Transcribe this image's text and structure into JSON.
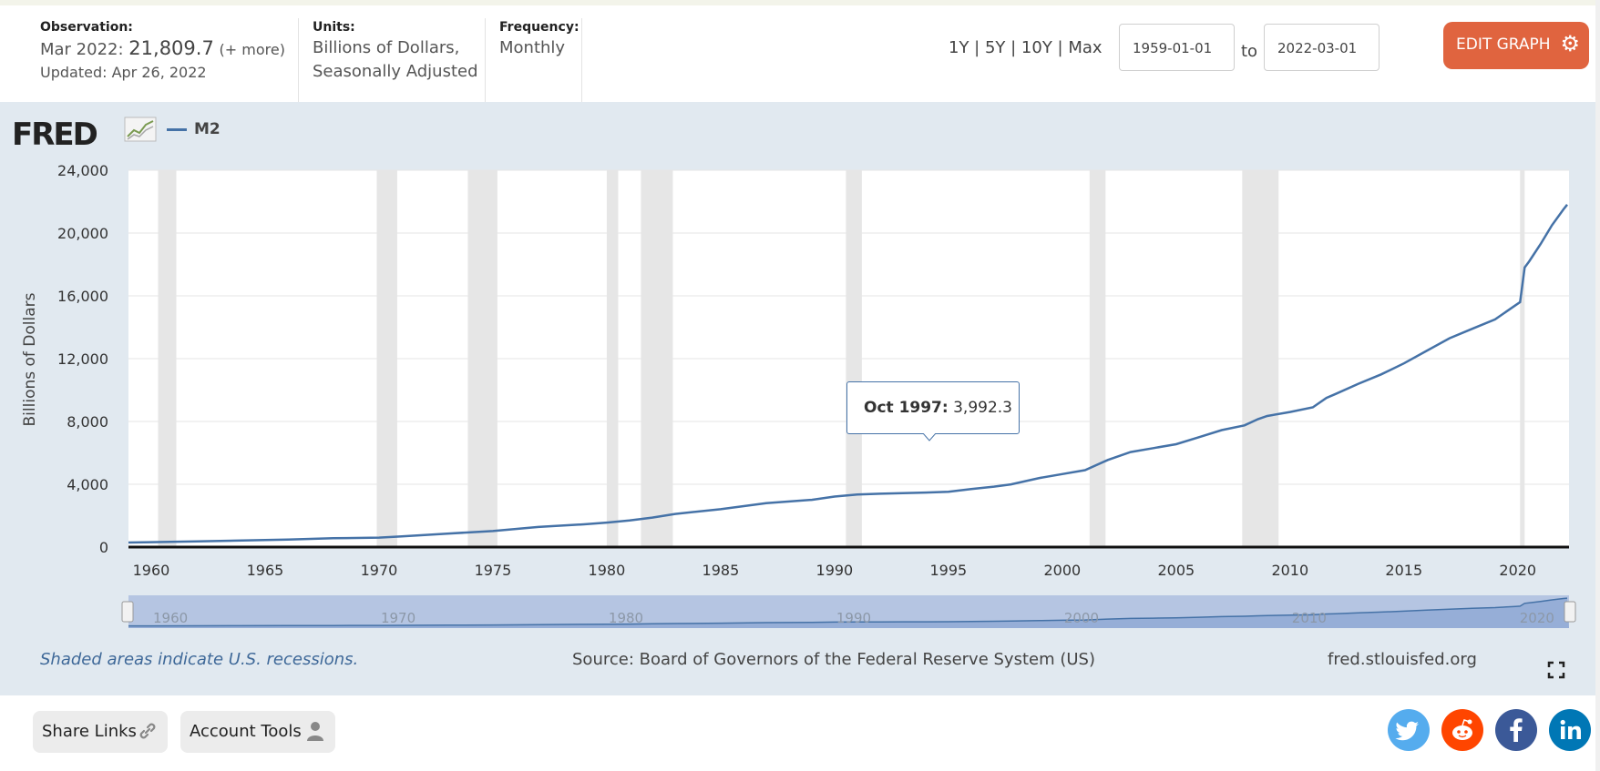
{
  "header": {
    "observation_label": "Observation:",
    "observation_date": "Mar 2022:",
    "observation_value": "21,809.7",
    "observation_more": "(+ more)",
    "updated": "Updated: Apr 26, 2022",
    "units_label": "Units:",
    "units_line1": "Billions of Dollars,",
    "units_line2": "Seasonally Adjusted",
    "frequency_label": "Frequency:",
    "frequency_value": "Monthly",
    "range_links": "1Y | 5Y | 10Y | Max",
    "start_date": "1959-01-01",
    "to_label": "to",
    "end_date": "2022-03-01",
    "edit_button": "EDIT GRAPH"
  },
  "graph": {
    "logo": "FRED",
    "recession_note": "Shaded areas indicate U.S. recessions.",
    "source": "Source: Board of Governors of the Federal Reserve System (US)",
    "site": "fred.stlouisfed.org",
    "tooltip_date": "Oct 1997:",
    "tooltip_value": "3,992.3"
  },
  "footer": {
    "share_links": "Share Links",
    "account_tools": "Account Tools"
  },
  "colors": {
    "series": "#4572a7",
    "recession": "#e6e6e6",
    "edit_button": "#e0643f",
    "twitter": "#55acee",
    "reddit": "#ff4500",
    "facebook": "#3b5998",
    "linkedin": "#0077b5"
  },
  "icons": [
    "fred-chart-icon",
    "gear-icon",
    "link-icon",
    "user-icon",
    "twitter-icon",
    "reddit-icon",
    "facebook-icon",
    "linkedin-icon",
    "expand-icon"
  ],
  "chart_data": {
    "type": "line",
    "title": "",
    "ylabel": "Billions of Dollars",
    "xlabel": "",
    "ylim": [
      0,
      24000
    ],
    "xlim": [
      1959.0,
      2022.25
    ],
    "y_ticks": [
      "0",
      "4,000",
      "8,000",
      "12,000",
      "16,000",
      "20,000",
      "24,000"
    ],
    "x_ticks": [
      "1960",
      "1965",
      "1970",
      "1975",
      "1980",
      "1985",
      "1990",
      "1995",
      "2000",
      "2005",
      "2010",
      "2015",
      "2020"
    ],
    "navigator_ticks": [
      "1960",
      "1970",
      "1980",
      "1990",
      "2000",
      "2010",
      "2020"
    ],
    "grid": true,
    "legend_position": "top-left",
    "recessions": [
      [
        1960.3,
        1961.1
      ],
      [
        1969.9,
        1970.8
      ],
      [
        1973.9,
        1975.2
      ],
      [
        1980.0,
        1980.5
      ],
      [
        1981.5,
        1982.9
      ],
      [
        1990.5,
        1991.2
      ],
      [
        2001.2,
        2001.9
      ],
      [
        2007.9,
        2009.5
      ],
      [
        2020.1,
        2020.3
      ]
    ],
    "series": [
      {
        "name": "M2",
        "x": [
          1959.0,
          1960.0,
          1962.0,
          1964.0,
          1966.0,
          1968.0,
          1970.0,
          1971.0,
          1973.0,
          1975.0,
          1977.0,
          1979.0,
          1980.0,
          1981.0,
          1982.0,
          1983.0,
          1985.0,
          1987.0,
          1989.0,
          1990.0,
          1991.0,
          1992.0,
          1993.0,
          1994.0,
          1995.0,
          1996.0,
          1997.0,
          1997.75,
          1999.0,
          2000.0,
          2001.0,
          2002.0,
          2003.0,
          2004.0,
          2005.0,
          2006.0,
          2007.0,
          2008.0,
          2008.6,
          2009.0,
          2010.0,
          2011.0,
          2011.6,
          2012.0,
          2013.0,
          2014.0,
          2015.0,
          2016.0,
          2017.0,
          2018.0,
          2019.0,
          2019.9,
          2020.1,
          2020.3,
          2020.5,
          2021.0,
          2021.5,
          2022.0,
          2022.17
        ],
        "values": [
          287,
          312,
          360,
          425,
          480,
          565,
          600,
          680,
          860,
          1020,
          1280,
          1450,
          1560,
          1700,
          1880,
          2110,
          2410,
          2800,
          3010,
          3220,
          3350,
          3400,
          3430,
          3470,
          3520,
          3700,
          3850,
          3992.3,
          4400,
          4650,
          4900,
          5550,
          6050,
          6300,
          6550,
          7000,
          7450,
          7750,
          8150,
          8350,
          8600,
          8900,
          9500,
          9750,
          10400,
          11000,
          11700,
          12500,
          13300,
          13900,
          14500,
          15400,
          15600,
          17800,
          18200,
          19300,
          20500,
          21500,
          21809.7
        ]
      }
    ]
  }
}
